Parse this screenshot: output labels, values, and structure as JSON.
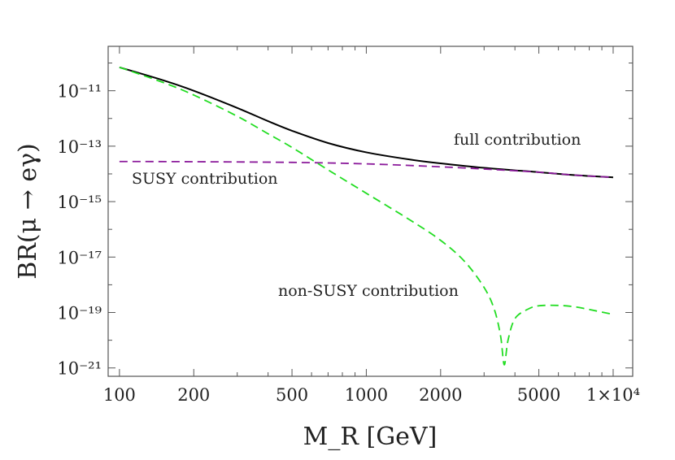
{
  "chart_data": {
    "type": "line",
    "x_scale": "log",
    "y_scale": "log",
    "xlabel": "M_R [GeV]",
    "ylabel": "BR(μ → eγ)",
    "xlim": [
      90,
      12000
    ],
    "ylim": [
      5e-22,
      4e-10
    ],
    "x_ticks": [
      {
        "value": 100,
        "label": "100"
      },
      {
        "value": 200,
        "label": "200"
      },
      {
        "value": 500,
        "label": "500"
      },
      {
        "value": 1000,
        "label": "1000"
      },
      {
        "value": 2000,
        "label": "2000"
      },
      {
        "value": 5000,
        "label": "5000"
      },
      {
        "value": 10000,
        "label": "1×10⁴"
      }
    ],
    "y_ticks": [
      {
        "value": 1e-11,
        "label": "10⁻¹¹"
      },
      {
        "value": 1e-13,
        "label": "10⁻¹³"
      },
      {
        "value": 1e-15,
        "label": "10⁻¹⁵"
      },
      {
        "value": 1e-17,
        "label": "10⁻¹⁷"
      },
      {
        "value": 1e-19,
        "label": "10⁻¹⁹"
      },
      {
        "value": 1e-21,
        "label": "10⁻²¹"
      }
    ],
    "grid": false,
    "series": [
      {
        "name": "full contribution",
        "color": "#000000",
        "style": "solid",
        "points": [
          [
            100,
            7e-11
          ],
          [
            150,
            2.4e-11
          ],
          [
            200,
            1e-11
          ],
          [
            300,
            2.4e-12
          ],
          [
            400,
            8e-13
          ],
          [
            500,
            3.6e-13
          ],
          [
            700,
            1.3e-13
          ],
          [
            1000,
            6e-14
          ],
          [
            1500,
            3.3e-14
          ],
          [
            2000,
            2.4e-14
          ],
          [
            3000,
            1.65e-14
          ],
          [
            5000,
            1.15e-14
          ],
          [
            7000,
            9e-15
          ],
          [
            10000,
            7.5e-15
          ]
        ]
      },
      {
        "name": "SUSY contribution",
        "color": "#8B1A9B",
        "style": "dashed",
        "points": [
          [
            100,
            2.8e-14
          ],
          [
            200,
            2.75e-14
          ],
          [
            500,
            2.6e-14
          ],
          [
            1000,
            2.3e-14
          ],
          [
            2000,
            1.8e-14
          ],
          [
            3000,
            1.5e-14
          ],
          [
            5000,
            1.15e-14
          ],
          [
            7000,
            9e-15
          ],
          [
            10000,
            7.5e-15
          ]
        ]
      },
      {
        "name": "non-SUSY contribution",
        "color": "#22DD22",
        "style": "dashed",
        "points": [
          [
            100,
            7e-11
          ],
          [
            150,
            2e-11
          ],
          [
            200,
            7e-12
          ],
          [
            300,
            1.2e-12
          ],
          [
            400,
            2.8e-13
          ],
          [
            500,
            9e-14
          ],
          [
            700,
            1.4e-14
          ],
          [
            1000,
            2e-15
          ],
          [
            1500,
            2.2e-16
          ],
          [
            2000,
            4e-17
          ],
          [
            2500,
            7e-18
          ],
          [
            3000,
            8e-19
          ],
          [
            3300,
            1.3e-19
          ],
          [
            3500,
            1.4e-20
          ],
          [
            3620,
            1.3e-21
          ],
          [
            3750,
            1e-20
          ],
          [
            4000,
            6e-20
          ],
          [
            4500,
            1.3e-19
          ],
          [
            5000,
            1.75e-19
          ],
          [
            6000,
            1.8e-19
          ],
          [
            7000,
            1.6e-19
          ],
          [
            8500,
            1.15e-19
          ],
          [
            10000,
            8.5e-20
          ]
        ]
      }
    ],
    "annotations": [
      {
        "text": "full contribution",
        "series": 0
      },
      {
        "text": "SUSY contribution",
        "series": 1
      },
      {
        "text": "non-SUSY contribution",
        "series": 2
      }
    ]
  }
}
